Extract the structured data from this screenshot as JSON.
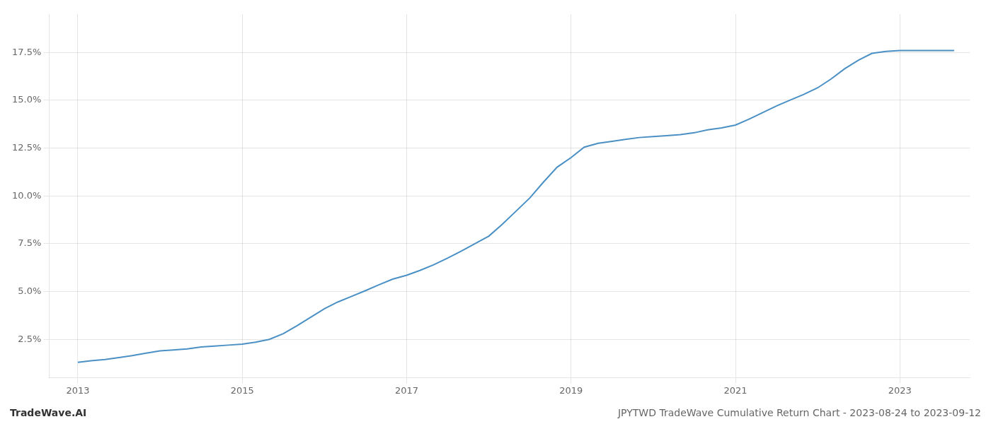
{
  "chart_data": {
    "type": "line",
    "title": "JPYTWD TradeWave Cumulative Return Chart - 2023-08-24 to 2023-09-12",
    "annotations": [
      "TradeWave.AI"
    ],
    "color": "#4a90c4",
    "grid": true,
    "x": [
      2013.0,
      2013.16,
      2013.33,
      2013.5,
      2013.66,
      2013.83,
      2014.0,
      2014.16,
      2014.33,
      2014.5,
      2014.66,
      2014.83,
      2015.0,
      2015.16,
      2015.33,
      2015.5,
      2015.66,
      2015.83,
      2016.0,
      2016.16,
      2016.33,
      2016.5,
      2016.66,
      2016.83,
      2017.0,
      2017.16,
      2017.33,
      2017.5,
      2017.66,
      2017.83,
      2018.0,
      2018.16,
      2018.33,
      2018.5,
      2018.66,
      2018.83,
      2019.0,
      2019.16,
      2019.33,
      2019.5,
      2019.66,
      2019.83,
      2020.0,
      2020.16,
      2020.33,
      2020.5,
      2020.66,
      2020.83,
      2021.0,
      2021.16,
      2021.33,
      2021.5,
      2021.66,
      2021.83,
      2022.0,
      2022.16,
      2022.33,
      2022.5,
      2022.66,
      2022.83,
      2023.0,
      2023.16,
      2023.5,
      2023.66
    ],
    "values": [
      1.3,
      1.38,
      1.45,
      1.55,
      1.65,
      1.78,
      1.9,
      1.95,
      2.0,
      2.1,
      2.15,
      2.2,
      2.25,
      2.35,
      2.5,
      2.8,
      3.2,
      3.65,
      4.1,
      4.45,
      4.75,
      5.05,
      5.35,
      5.65,
      5.85,
      6.1,
      6.4,
      6.75,
      7.1,
      7.5,
      7.9,
      8.5,
      9.2,
      9.9,
      10.7,
      11.5,
      12.0,
      12.55,
      12.75,
      12.85,
      12.95,
      13.05,
      13.1,
      13.15,
      13.2,
      13.3,
      13.45,
      13.55,
      13.7,
      14.0,
      14.35,
      14.7,
      15.0,
      15.3,
      15.65,
      16.1,
      16.65,
      17.1,
      17.45,
      17.55,
      17.6,
      17.6,
      17.6,
      17.6
    ],
    "xlim": [
      2012.65,
      2023.85
    ],
    "ylim": [
      0.5,
      19.5
    ],
    "xticks": [
      2013,
      2015,
      2017,
      2019,
      2021,
      2023
    ],
    "yticks": [
      {
        "value": 2.5,
        "label": "2.5%"
      },
      {
        "value": 5.0,
        "label": "5.0%"
      },
      {
        "value": 7.5,
        "label": "7.5%"
      },
      {
        "value": 10.0,
        "label": "10.0%"
      },
      {
        "value": 12.5,
        "label": "12.5%"
      },
      {
        "value": 15.0,
        "label": "15.0%"
      },
      {
        "value": 17.5,
        "label": "17.5%"
      }
    ]
  }
}
